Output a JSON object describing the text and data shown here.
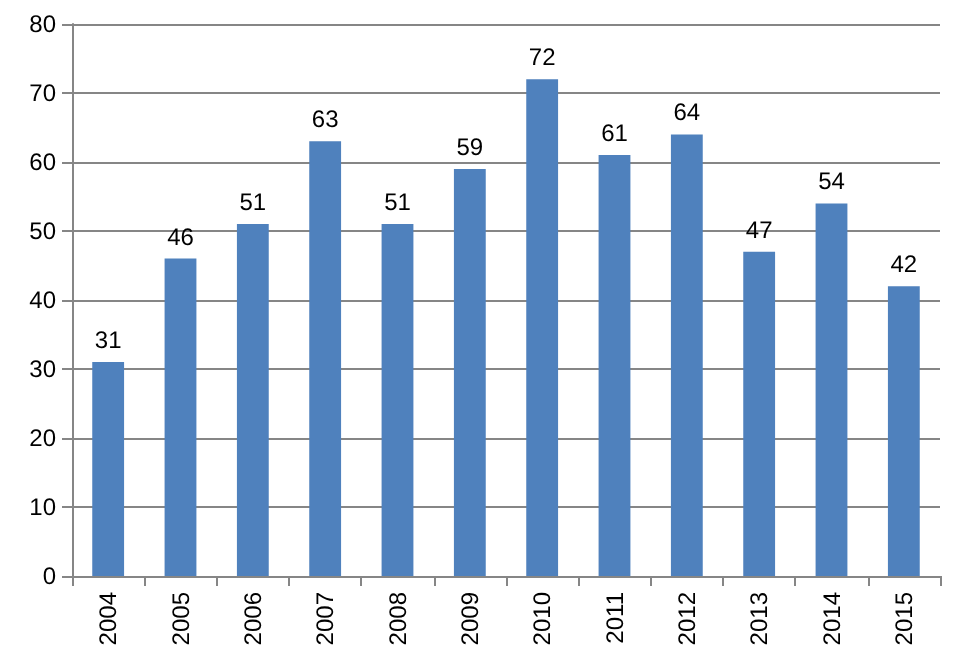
{
  "chart_data": {
    "type": "bar",
    "categories": [
      "2004",
      "2005",
      "2006",
      "2007",
      "2008",
      "2009",
      "2010",
      "2011",
      "2012",
      "2013",
      "2014",
      "2015"
    ],
    "values": [
      31,
      46,
      51,
      63,
      51,
      59,
      72,
      61,
      64,
      47,
      54,
      42
    ],
    "color": "#4f81bd",
    "ylim": [
      0,
      80
    ],
    "yticks": [
      0,
      10,
      20,
      30,
      40,
      50,
      60,
      70,
      80
    ],
    "grid": "y",
    "data_labels": true
  }
}
